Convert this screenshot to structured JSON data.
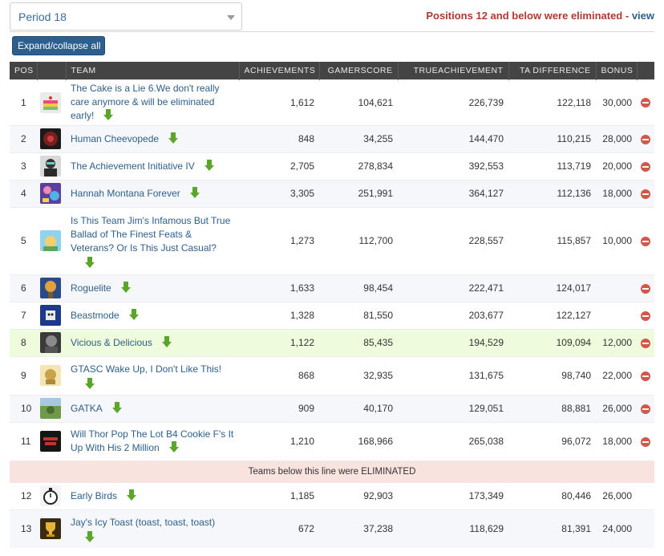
{
  "header": {
    "period_label": "Period 18",
    "elimination_text": "Positions 12 and below were eliminated",
    "separator": " - ",
    "view_label": "view",
    "expand_label": "Expand/collapse all"
  },
  "columns": {
    "pos": "POS",
    "team": "TEAM",
    "achievements": "ACHIEVEMENTS",
    "gamerscore": "GAMERSCORE",
    "trueachievement": "TRUEACHIEVEMENT",
    "ta_difference": "TA DIFFERENCE",
    "bonus": "BONUS"
  },
  "divider_text": "Teams below this line were ELIMINATED",
  "colors": {
    "header_bg": "#444444",
    "link": "#2d5f8b",
    "highlight_row": "#eefbdc",
    "eliminated_band": "#f9e3df",
    "arrow": "#5aa62a",
    "remove": "#d0574a"
  },
  "rows": [
    {
      "pos": "1",
      "team": "The Cake is a Lie 6.We don't really care anymore & will be eliminated early!",
      "achievements": "1,612",
      "gamerscore": "104,621",
      "trueachievement": "226,739",
      "ta_difference": "122,118",
      "bonus": "30,000",
      "avatar_icon": "cake-avatar-icon"
    },
    {
      "pos": "2",
      "team": "Human Cheevopede",
      "achievements": "848",
      "gamerscore": "34,255",
      "trueachievement": "144,470",
      "ta_difference": "110,215",
      "bonus": "28,000",
      "avatar_icon": "cheevopede-avatar-icon"
    },
    {
      "pos": "3",
      "team": "The Achievement Initiative IV",
      "achievements": "2,705",
      "gamerscore": "278,834",
      "trueachievement": "392,553",
      "ta_difference": "113,719",
      "bonus": "20,000",
      "avatar_icon": "initiative-avatar-icon"
    },
    {
      "pos": "4",
      "team": "Hannah Montana Forever",
      "achievements": "3,305",
      "gamerscore": "251,991",
      "trueachievement": "364,127",
      "ta_difference": "112,136",
      "bonus": "18,000",
      "avatar_icon": "hannah-avatar-icon"
    },
    {
      "pos": "5",
      "team": "Is This Team Jim's Infamous But True Ballad of The Finest Feats & Veterans? Or Is This Just Casual?",
      "achievements": "1,273",
      "gamerscore": "112,700",
      "trueachievement": "228,557",
      "ta_difference": "115,857",
      "bonus": "10,000",
      "avatar_icon": "ballad-avatar-icon"
    },
    {
      "pos": "6",
      "team": "Roguelite",
      "achievements": "1,633",
      "gamerscore": "98,454",
      "trueachievement": "222,471",
      "ta_difference": "124,017",
      "bonus": "",
      "avatar_icon": "roguelite-avatar-icon"
    },
    {
      "pos": "7",
      "team": "Beastmode",
      "achievements": "1,328",
      "gamerscore": "81,550",
      "trueachievement": "203,677",
      "ta_difference": "122,127",
      "bonus": "",
      "avatar_icon": "beastmode-avatar-icon"
    },
    {
      "pos": "8",
      "team": "Vicious & Delicious",
      "achievements": "1,122",
      "gamerscore": "85,435",
      "trueachievement": "194,529",
      "ta_difference": "109,094",
      "bonus": "12,000",
      "avatar_icon": "vicious-avatar-icon"
    },
    {
      "pos": "9",
      "team": "GTASC Wake Up, I Don't Like This!",
      "achievements": "868",
      "gamerscore": "32,935",
      "trueachievement": "131,675",
      "ta_difference": "98,740",
      "bonus": "22,000",
      "avatar_icon": "gtasc-avatar-icon"
    },
    {
      "pos": "10",
      "team": "GATKA",
      "achievements": "909",
      "gamerscore": "40,170",
      "trueachievement": "129,051",
      "ta_difference": "88,881",
      "bonus": "26,000",
      "avatar_icon": "gatka-avatar-icon"
    },
    {
      "pos": "11",
      "team": "Will Thor Pop The Lot B4 Cookie F's It Up With His 2 Million",
      "achievements": "1,210",
      "gamerscore": "168,966",
      "trueachievement": "265,038",
      "ta_difference": "96,072",
      "bonus": "18,000",
      "avatar_icon": "thor-avatar-icon"
    },
    {
      "pos": "12",
      "team": "Early Birds",
      "achievements": "1,185",
      "gamerscore": "92,903",
      "trueachievement": "173,349",
      "ta_difference": "80,446",
      "bonus": "26,000",
      "avatar_icon": "stopwatch-avatar-icon"
    },
    {
      "pos": "13",
      "team": "Jay's Icy Toast (toast, toast, toast)",
      "achievements": "672",
      "gamerscore": "37,238",
      "trueachievement": "118,629",
      "ta_difference": "81,391",
      "bonus": "24,000",
      "avatar_icon": "trophy-avatar-icon"
    }
  ]
}
